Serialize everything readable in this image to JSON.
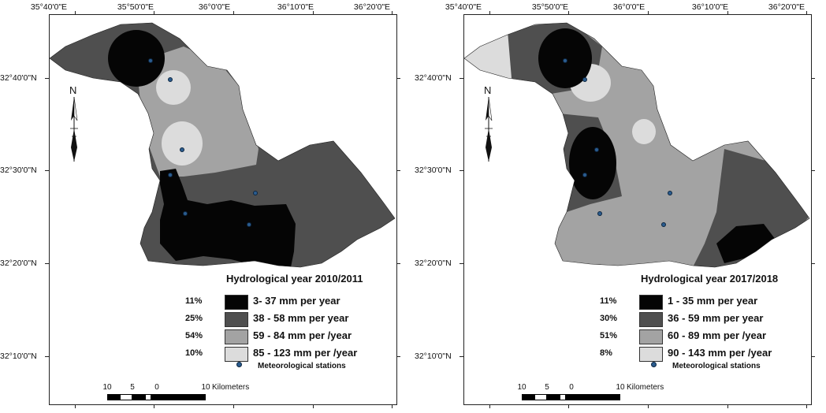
{
  "axes": {
    "longitude_labels": [
      "35°40'0\"E",
      "35°50'0\"E",
      "36°0'0\"E",
      "36°10'0\"E",
      "36°20'0\"E"
    ],
    "latitude_labels": [
      "32°40'0\"N",
      "32°30'0\"N",
      "32°20'0\"N",
      "32°10'0\"N"
    ]
  },
  "north_arrow": {
    "label": "N",
    "icon": "north-arrow-icon"
  },
  "scale_bar": {
    "ticks": [
      "10",
      "5",
      "0",
      "10"
    ],
    "unit": "Kilometers"
  },
  "colors": {
    "class1": "#050505",
    "class2": "#4f4f4f",
    "class3": "#a3a3a3",
    "class4": "#dcdcdc",
    "station": "#2b5c8f"
  },
  "maps": [
    {
      "title": "Hydrological year 2010/2011",
      "legend": [
        {
          "percent": "11%",
          "label": "3- 37 mm per year"
        },
        {
          "percent": "25%",
          "label": "38 - 58 mm per year"
        },
        {
          "percent": "54%",
          "label": "59 - 84 mm per /year"
        },
        {
          "percent": "10%",
          "label": "85 - 123 mm per /year"
        }
      ],
      "stations_label": "Meteorological stations"
    },
    {
      "title": "Hydrological year 2017/2018",
      "legend": [
        {
          "percent": "11%",
          "label": "1 - 35 mm per year"
        },
        {
          "percent": "30%",
          "label": "36 - 59 mm per year"
        },
        {
          "percent": "51%",
          "label": "60 - 89 mm per /year"
        },
        {
          "percent": "8%",
          "label": "90 - 143 mm per /year"
        }
      ],
      "stations_label": "Meteorological stations"
    }
  ]
}
